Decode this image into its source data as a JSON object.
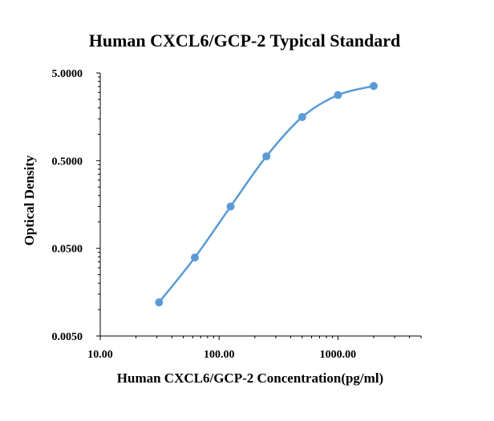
{
  "chart_data": {
    "type": "scatter",
    "title": "Human CXCL6/GCP-2  Typical Standard",
    "xlabel": "Human CXCL6/GCP-2  Concentration(pg/ml)",
    "ylabel": "Optical Density",
    "x_scale": "log",
    "y_scale": "log",
    "xlim": [
      10,
      5000
    ],
    "ylim": [
      0.005,
      5
    ],
    "x_ticks": [
      "10.00",
      "100.00",
      "1000.00"
    ],
    "y_ticks": [
      "0.0050",
      "0.0500",
      "0.5000",
      "5.0000"
    ],
    "grid": false,
    "series": [
      {
        "x": [
          31.25,
          62.5,
          125,
          250,
          500,
          1000,
          2000
        ],
        "y": [
          0.0121,
          0.0393,
          0.15,
          0.56,
          1.57,
          2.8,
          3.55
        ],
        "color": "#5B9BD5",
        "smooth_line": true
      }
    ]
  }
}
